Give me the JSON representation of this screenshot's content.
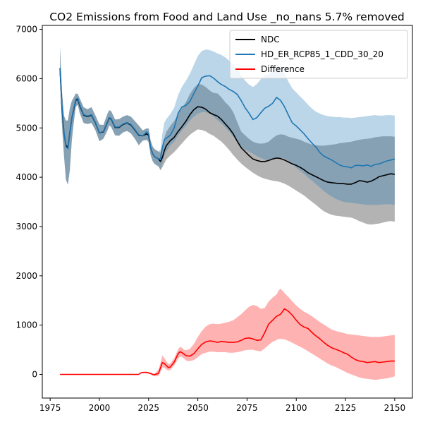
{
  "chart_data": {
    "type": "line",
    "title": "CO2 Emissions from Food and Land Use _no_nans 5.7% removed",
    "xlabel": "",
    "ylabel": "",
    "xlim": [
      1971,
      2159
    ],
    "ylim": [
      -480,
      7080
    ],
    "xticks": [
      1975,
      2000,
      2025,
      2050,
      2075,
      2100,
      2125,
      2150
    ],
    "yticks": [
      0,
      1000,
      2000,
      3000,
      4000,
      5000,
      6000,
      7000
    ],
    "grid": false,
    "legend_position": "top-right",
    "series": [
      {
        "name": "NDC",
        "color": "#000000",
        "band_color": "#808080",
        "band_opacity": 0.6,
        "x": [
          1980,
          1981,
          1982,
          1983,
          1984,
          1985,
          1986,
          1987,
          1988,
          1989,
          1990,
          1992,
          1994,
          1996,
          1998,
          2000,
          2002,
          2004,
          2005,
          2006,
          2008,
          2010,
          2012,
          2014,
          2016,
          2018,
          2020,
          2022,
          2024,
          2025,
          2026,
          2027,
          2028,
          2030,
          2031,
          2032,
          2033,
          2034,
          2036,
          2038,
          2040,
          2042,
          2044,
          2046,
          2048,
          2050,
          2052,
          2054,
          2056,
          2058,
          2060,
          2062,
          2064,
          2066,
          2068,
          2070,
          2072,
          2074,
          2076,
          2078,
          2080,
          2082,
          2084,
          2086,
          2088,
          2090,
          2092,
          2094,
          2096,
          2098,
          2100,
          2102,
          2104,
          2106,
          2108,
          2110,
          2112,
          2114,
          2116,
          2118,
          2120,
          2122,
          2124,
          2126,
          2128,
          2130,
          2132,
          2134,
          2136,
          2138,
          2140,
          2142,
          2144,
          2146,
          2148,
          2150
        ],
        "values": [
          6200,
          5400,
          4900,
          4650,
          4600,
          4900,
          5200,
          5380,
          5560,
          5580,
          5450,
          5260,
          5230,
          5260,
          5100,
          4900,
          4920,
          5110,
          5200,
          5180,
          5010,
          5010,
          5070,
          5100,
          5060,
          4960,
          4850,
          4840,
          4880,
          4850,
          4600,
          4480,
          4420,
          4370,
          4320,
          4400,
          4540,
          4640,
          4740,
          4810,
          4930,
          5030,
          5140,
          5270,
          5370,
          5430,
          5420,
          5380,
          5310,
          5270,
          5240,
          5170,
          5080,
          4990,
          4880,
          4730,
          4600,
          4520,
          4440,
          4370,
          4340,
          4320,
          4320,
          4340,
          4370,
          4390,
          4380,
          4350,
          4310,
          4270,
          4240,
          4200,
          4150,
          4090,
          4050,
          4010,
          3970,
          3930,
          3900,
          3890,
          3880,
          3870,
          3870,
          3860,
          3860,
          3890,
          3930,
          3920,
          3900,
          3920,
          3960,
          4010,
          4030,
          4050,
          4070,
          4060
        ],
        "lower": [
          6050,
          5050,
          4450,
          3950,
          3850,
          4150,
          4750,
          5120,
          5430,
          5470,
          5300,
          5100,
          5080,
          5100,
          4950,
          4730,
          4780,
          4940,
          5050,
          5020,
          4850,
          4840,
          4910,
          4940,
          4890,
          4780,
          4650,
          4740,
          4760,
          4710,
          4450,
          4330,
          4270,
          4220,
          4140,
          4200,
          4280,
          4360,
          4440,
          4510,
          4600,
          4690,
          4780,
          4860,
          4920,
          4970,
          4960,
          4930,
          4880,
          4840,
          4780,
          4720,
          4640,
          4550,
          4450,
          4360,
          4280,
          4210,
          4150,
          4090,
          4040,
          4000,
          3970,
          3950,
          3930,
          3920,
          3900,
          3870,
          3830,
          3780,
          3730,
          3680,
          3630,
          3560,
          3500,
          3440,
          3370,
          3310,
          3270,
          3240,
          3220,
          3210,
          3200,
          3190,
          3180,
          3150,
          3110,
          3080,
          3050,
          3040,
          3050,
          3060,
          3080,
          3100,
          3110,
          3100
        ],
        "upper": [
          6650,
          5750,
          5250,
          5150,
          5150,
          5400,
          5550,
          5620,
          5700,
          5690,
          5600,
          5420,
          5380,
          5420,
          5250,
          5070,
          5060,
          5280,
          5360,
          5340,
          5170,
          5180,
          5230,
          5260,
          5230,
          5140,
          5050,
          4950,
          4990,
          4990,
          4750,
          4630,
          4570,
          4520,
          4500,
          4610,
          4800,
          4920,
          5040,
          5140,
          5280,
          5400,
          5530,
          5690,
          5810,
          5890,
          5880,
          5830,
          5760,
          5710,
          5700,
          5620,
          5520,
          5440,
          5320,
          5120,
          4930,
          4850,
          4780,
          4720,
          4690,
          4680,
          4690,
          4720,
          4790,
          4850,
          4870,
          4860,
          4820,
          4800,
          4780,
          4760,
          4720,
          4690,
          4660,
          4650,
          4640,
          4640,
          4650,
          4660,
          4670,
          4690,
          4700,
          4710,
          4720,
          4740,
          4760,
          4770,
          4780,
          4790,
          4810,
          4820,
          4830,
          4830,
          4830,
          4820
        ]
      },
      {
        "name": "HD_ER_RCP85_1_CDD_30_20",
        "color": "#1f77b4",
        "band_color": "#1f77b4",
        "band_opacity": 0.3,
        "x": [
          1980,
          1981,
          1982,
          1983,
          1984,
          1985,
          1986,
          1987,
          1988,
          1989,
          1990,
          1992,
          1994,
          1996,
          1998,
          2000,
          2002,
          2004,
          2005,
          2006,
          2008,
          2010,
          2012,
          2014,
          2016,
          2018,
          2020,
          2022,
          2024,
          2025,
          2026,
          2027,
          2028,
          2030,
          2031,
          2032,
          2033,
          2034,
          2036,
          2038,
          2040,
          2042,
          2044,
          2046,
          2048,
          2050,
          2052,
          2054,
          2056,
          2058,
          2060,
          2062,
          2064,
          2066,
          2068,
          2070,
          2072,
          2074,
          2076,
          2078,
          2080,
          2082,
          2084,
          2086,
          2088,
          2090,
          2092,
          2094,
          2096,
          2098,
          2100,
          2102,
          2104,
          2106,
          2108,
          2110,
          2112,
          2114,
          2116,
          2118,
          2120,
          2122,
          2124,
          2126,
          2128,
          2130,
          2132,
          2134,
          2136,
          2138,
          2140,
          2142,
          2144,
          2146,
          2148,
          2150
        ],
        "values": [
          6220,
          5450,
          4920,
          4620,
          4580,
          4880,
          5200,
          5400,
          5580,
          5600,
          5470,
          5270,
          5240,
          5270,
          5110,
          4900,
          4930,
          5120,
          5210,
          5190,
          5020,
          5020,
          5080,
          5110,
          5070,
          4970,
          4860,
          4840,
          4920,
          4880,
          4600,
          4480,
          4420,
          4370,
          4380,
          4600,
          4760,
          4790,
          4850,
          5000,
          5300,
          5430,
          5460,
          5540,
          5700,
          5850,
          6020,
          6050,
          6060,
          6010,
          5940,
          5880,
          5840,
          5780,
          5740,
          5680,
          5560,
          5410,
          5300,
          5170,
          5210,
          5310,
          5400,
          5440,
          5500,
          5620,
          5560,
          5430,
          5260,
          5100,
          5040,
          4960,
          4880,
          4780,
          4690,
          4610,
          4500,
          4430,
          4390,
          4350,
          4300,
          4250,
          4220,
          4210,
          4190,
          4240,
          4240,
          4230,
          4250,
          4220,
          4260,
          4270,
          4300,
          4330,
          4350,
          4370
        ],
        "lower": [
          6050,
          5050,
          4450,
          3950,
          3850,
          4150,
          4750,
          5120,
          5430,
          5470,
          5300,
          5100,
          5080,
          5100,
          4950,
          4730,
          4780,
          4940,
          5050,
          5020,
          4850,
          4840,
          4910,
          4940,
          4890,
          4780,
          4650,
          4740,
          4760,
          4710,
          4450,
          4330,
          4270,
          4220,
          4160,
          4270,
          4440,
          4520,
          4640,
          4720,
          4850,
          4950,
          5050,
          5150,
          5230,
          5290,
          5320,
          5320,
          5290,
          5230,
          5160,
          5090,
          5010,
          4920,
          4820,
          4720,
          4620,
          4560,
          4520,
          4480,
          4430,
          4390,
          4360,
          4350,
          4360,
          4380,
          4400,
          4380,
          4330,
          4260,
          4190,
          4130,
          4070,
          3990,
          3930,
          3860,
          3790,
          3720,
          3660,
          3610,
          3560,
          3530,
          3500,
          3490,
          3480,
          3470,
          3460,
          3450,
          3440,
          3440,
          3440,
          3440,
          3450,
          3450,
          3450,
          3440
        ],
        "upper": [
          6650,
          5750,
          5250,
          5150,
          5150,
          5400,
          5550,
          5620,
          5700,
          5690,
          5600,
          5420,
          5380,
          5420,
          5250,
          5070,
          5060,
          5280,
          5360,
          5340,
          5170,
          5180,
          5230,
          5260,
          5230,
          5140,
          5050,
          4950,
          4990,
          4990,
          4750,
          4630,
          4570,
          4520,
          4560,
          4880,
          5110,
          5180,
          5280,
          5410,
          5670,
          5840,
          5960,
          6100,
          6280,
          6460,
          6560,
          6590,
          6580,
          6550,
          6510,
          6480,
          6430,
          6360,
          6290,
          6190,
          6070,
          5960,
          5880,
          5830,
          5890,
          5990,
          6060,
          6090,
          6150,
          6260,
          6210,
          6100,
          5940,
          5800,
          5720,
          5640,
          5560,
          5470,
          5390,
          5330,
          5290,
          5260,
          5240,
          5230,
          5220,
          5220,
          5210,
          5210,
          5200,
          5210,
          5220,
          5230,
          5240,
          5250,
          5260,
          5250,
          5250,
          5260,
          5260,
          5250
        ]
      },
      {
        "name": "Difference",
        "color": "#ff0000",
        "band_color": "#ff0000",
        "band_opacity": 0.3,
        "x": [
          1980,
          1990,
          2000,
          2010,
          2020,
          2021,
          2022,
          2024,
          2026,
          2027,
          2028,
          2030,
          2031,
          2032,
          2033,
          2034,
          2035,
          2036,
          2038,
          2040,
          2041,
          2042,
          2043,
          2044,
          2046,
          2048,
          2050,
          2052,
          2054,
          2056,
          2058,
          2060,
          2062,
          2064,
          2066,
          2068,
          2070,
          2072,
          2074,
          2076,
          2078,
          2080,
          2082,
          2084,
          2086,
          2088,
          2090,
          2091,
          2092,
          2094,
          2096,
          2098,
          2100,
          2102,
          2104,
          2106,
          2108,
          2110,
          2112,
          2114,
          2116,
          2118,
          2120,
          2122,
          2124,
          2126,
          2128,
          2130,
          2132,
          2134,
          2136,
          2138,
          2140,
          2142,
          2144,
          2146,
          2148,
          2150
        ],
        "values": [
          0,
          0,
          0,
          0,
          0,
          30,
          40,
          40,
          20,
          0,
          -5,
          20,
          130,
          240,
          220,
          180,
          140,
          150,
          250,
          420,
          460,
          440,
          410,
          380,
          370,
          420,
          520,
          610,
          660,
          680,
          670,
          650,
          670,
          660,
          650,
          650,
          660,
          690,
          730,
          740,
          720,
          690,
          700,
          850,
          1020,
          1100,
          1180,
          1200,
          1220,
          1330,
          1280,
          1200,
          1100,
          1010,
          960,
          930,
          850,
          780,
          720,
          650,
          590,
          540,
          510,
          480,
          440,
          410,
          350,
          300,
          270,
          260,
          240,
          250,
          260,
          240,
          250,
          260,
          270,
          270
        ],
        "lower": [
          0,
          0,
          0,
          0,
          0,
          25,
          30,
          25,
          0,
          -20,
          -40,
          -30,
          50,
          140,
          140,
          100,
          80,
          90,
          180,
          320,
          360,
          350,
          320,
          280,
          270,
          290,
          350,
          410,
          440,
          460,
          460,
          450,
          450,
          450,
          440,
          440,
          450,
          470,
          490,
          500,
          500,
          480,
          470,
          530,
          600,
          660,
          700,
          720,
          720,
          710,
          680,
          640,
          600,
          560,
          520,
          470,
          420,
          370,
          320,
          270,
          220,
          180,
          150,
          110,
          70,
          30,
          0,
          -30,
          -60,
          -80,
          -90,
          -100,
          -110,
          -100,
          -90,
          -80,
          -60,
          -40
        ],
        "upper": [
          0,
          0,
          0,
          0,
          0,
          40,
          50,
          55,
          40,
          20,
          10,
          100,
          230,
          380,
          330,
          270,
          210,
          220,
          330,
          510,
          560,
          540,
          500,
          490,
          520,
          620,
          760,
          880,
          970,
          1020,
          1030,
          1020,
          1030,
          1050,
          1070,
          1100,
          1160,
          1220,
          1300,
          1370,
          1410,
          1390,
          1330,
          1350,
          1480,
          1560,
          1620,
          1700,
          1740,
          1650,
          1570,
          1480,
          1400,
          1330,
          1270,
          1230,
          1180,
          1120,
          1060,
          1010,
          960,
          910,
          880,
          860,
          840,
          820,
          810,
          800,
          790,
          780,
          770,
          760,
          760,
          760,
          770,
          780,
          790,
          800
        ]
      }
    ]
  }
}
